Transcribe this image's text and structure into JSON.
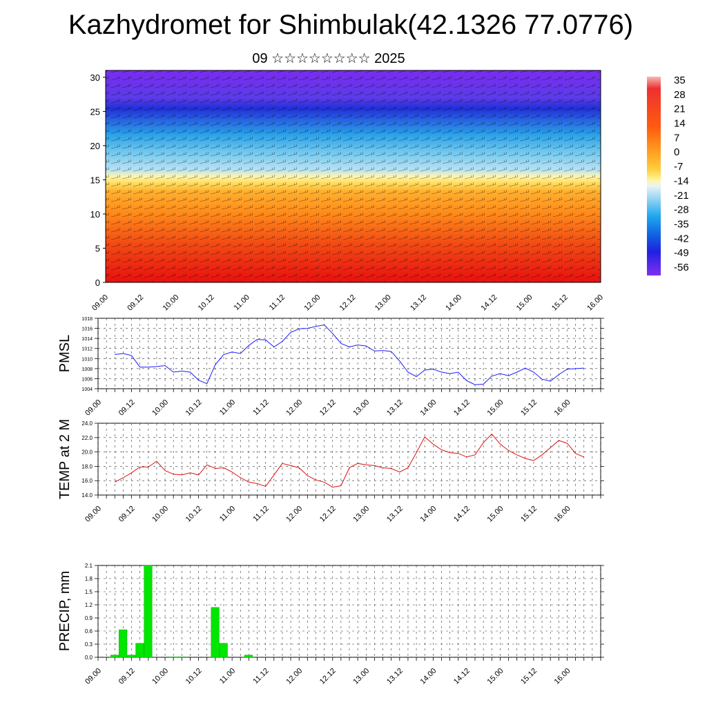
{
  "title": "Kazhydromet for Shimbulak(42.1326 77.0776)",
  "subtitle": "09 ☆☆☆☆☆☆☆☆ 2025",
  "colors": {
    "pmsl_line": "#1a1aff",
    "temp_line": "#e01010",
    "precip_bar": "#00e600"
  },
  "chart_data": [
    {
      "type": "heatmap",
      "name": "vertical-cross-section",
      "xlabel": "",
      "ylabel": "",
      "x_tick_labels": [
        "09.00",
        "09.12",
        "10.00",
        "10.12",
        "11.00",
        "11.12",
        "12.00",
        "12.12",
        "13.00",
        "13.12",
        "14.00",
        "14.12",
        "15.00",
        "15.12",
        "16.00"
      ],
      "y_tick_labels": [
        "0",
        "5",
        "10",
        "15",
        "20",
        "25",
        "30"
      ],
      "ylim": [
        0,
        31
      ],
      "colorbar_labels": [
        "35",
        "28",
        "21",
        "14",
        "7",
        "0",
        "-7",
        "-14",
        "-21",
        "-28",
        "-35",
        "-42",
        "-49",
        "-56"
      ],
      "colorbar_range": [
        -60,
        37
      ],
      "overlay": "wind barbs"
    },
    {
      "type": "line",
      "name": "pmsl",
      "ylabel": "PMSL",
      "ylim": [
        1004,
        1018
      ],
      "y_tick_labels": [
        "1004",
        "1006",
        "1008",
        "1010",
        "1012",
        "1014",
        "1016",
        "1018"
      ],
      "x_tick_labels": [
        "09.00",
        "09.12",
        "10.00",
        "10.12",
        "11.00",
        "11.12",
        "12.00",
        "12.12",
        "13.00",
        "13.12",
        "14.00",
        "14.12",
        "15.00",
        "15.12",
        "16.00"
      ],
      "x_hours": [
        0,
        3,
        6,
        9,
        12,
        15,
        18,
        21,
        24,
        27,
        30,
        33,
        36,
        39,
        42,
        45,
        48,
        51,
        54,
        57,
        60,
        63,
        66,
        69,
        72,
        75,
        78,
        81,
        84,
        87,
        90,
        93,
        96,
        99,
        102,
        105,
        108,
        111,
        114,
        117,
        120,
        123,
        126,
        129,
        132,
        135,
        138,
        141,
        144,
        147,
        150,
        153,
        156,
        159,
        162,
        165,
        168
      ],
      "values": [
        1010.8,
        1011,
        1010.6,
        1008.3,
        1008.3,
        1008.4,
        1008.6,
        1007.3,
        1007.5,
        1007.3,
        1005.7,
        1005,
        1008.8,
        1010.8,
        1011.3,
        1011,
        1012.6,
        1013.8,
        1013.7,
        1012.3,
        1013.4,
        1015.2,
        1015.9,
        1016,
        1016.4,
        1016.7,
        1015,
        1013,
        1012.3,
        1012.7,
        1012.5,
        1011.5,
        1011.6,
        1011.4,
        1009.5,
        1007.3,
        1006.4,
        1007.7,
        1007.9,
        1007.3,
        1007,
        1007.3,
        1005.6,
        1004.8,
        1004.9,
        1006.5,
        1007,
        1006.6,
        1007.3,
        1008.1,
        1007.3,
        1005.9,
        1005.5,
        1006.8,
        1007.9,
        1008,
        1008.1
      ]
    },
    {
      "type": "line",
      "name": "temp",
      "ylabel": "TEMP at 2 M",
      "ylim": [
        14,
        24
      ],
      "y_tick_labels": [
        "14.0",
        "16.0",
        "18.0",
        "20.0",
        "22.0",
        "24.0"
      ],
      "x_tick_labels": [
        "09.00",
        "09.12",
        "10.00",
        "10.12",
        "11.00",
        "11.12",
        "12.00",
        "12.12",
        "13.00",
        "13.12",
        "14.00",
        "14.12",
        "15.00",
        "15.12",
        "16.00"
      ],
      "x_hours": [
        0,
        3,
        6,
        9,
        12,
        15,
        18,
        21,
        24,
        27,
        30,
        33,
        36,
        39,
        42,
        45,
        48,
        51,
        54,
        57,
        60,
        63,
        66,
        69,
        72,
        75,
        78,
        81,
        84,
        87,
        90,
        93,
        96,
        99,
        102,
        105,
        108,
        111,
        114,
        117,
        120,
        123,
        126,
        129,
        132,
        135,
        138,
        141,
        144,
        147,
        150,
        153,
        156,
        159,
        162,
        165,
        168
      ],
      "values": [
        15.8,
        16.4,
        17.1,
        17.9,
        17.9,
        18.7,
        17.4,
        16.9,
        16.8,
        17.1,
        16.8,
        18.2,
        17.7,
        17.8,
        17.2,
        16.4,
        15.8,
        15.6,
        15.2,
        16.8,
        18.4,
        18.1,
        17.8,
        16.7,
        16.1,
        15.8,
        15.1,
        15.3,
        17.8,
        18.4,
        18.2,
        18.1,
        17.8,
        17.7,
        17.2,
        17.8,
        19.9,
        22.1,
        21.1,
        20.3,
        19.9,
        19.8,
        19.3,
        19.6,
        21.3,
        22.5,
        21.1,
        20.2,
        19.6,
        19.1,
        18.8,
        19.6,
        20.6,
        21.6,
        21.2,
        19.8,
        19.3
      ]
    },
    {
      "type": "bar",
      "name": "precip",
      "ylabel": "PRECIP, mm",
      "ylim": [
        0,
        2.1
      ],
      "y_tick_labels": [
        "0.0",
        "0.3",
        "0.6",
        "0.9",
        "1.2",
        "1.5",
        "1.8",
        "2.1"
      ],
      "x_tick_labels": [
        "09.00",
        "09.12",
        "10.00",
        "10.12",
        "11.00",
        "11.12",
        "12.00",
        "12.12",
        "13.00",
        "13.12",
        "14.00",
        "14.12",
        "15.00",
        "15.12",
        "16.00"
      ],
      "x_hours": [
        0,
        3,
        6,
        9,
        12,
        15,
        18,
        21,
        24,
        27,
        30,
        33,
        36,
        39,
        42,
        45,
        48,
        51,
        54,
        57,
        60,
        63,
        66,
        69,
        72,
        75,
        78,
        81,
        84,
        87,
        90,
        93,
        96,
        99,
        102,
        105,
        108,
        111,
        114,
        117,
        120,
        123,
        126,
        129,
        132,
        135,
        138,
        141,
        144,
        147,
        150,
        153,
        156,
        159,
        162,
        165,
        168
      ],
      "values": [
        0.05,
        0.63,
        0.05,
        0.32,
        2.1,
        0,
        0,
        0.01,
        0.01,
        0,
        0,
        0,
        1.14,
        0.32,
        0,
        0,
        0.05,
        0,
        0,
        0,
        0,
        0,
        0,
        0,
        0,
        0,
        0,
        0,
        0,
        0,
        0,
        0,
        0,
        0,
        0,
        0,
        0,
        0,
        0,
        0,
        0,
        0,
        0,
        0,
        0,
        0,
        0,
        0,
        0,
        0,
        0,
        0,
        0,
        0,
        0,
        0,
        0
      ]
    }
  ]
}
